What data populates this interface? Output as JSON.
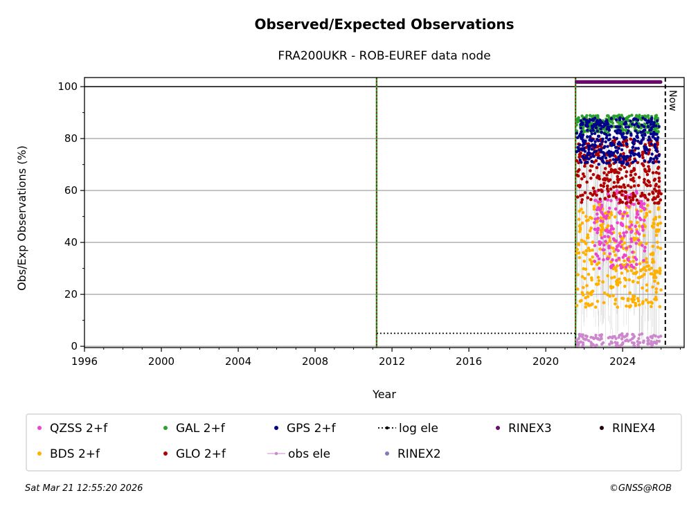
{
  "chart_data": {
    "type": "scatter",
    "title": "Observed/Expected Observations",
    "subtitle": "FRA200UKR - ROB-EUREF data node",
    "xlabel": "Year",
    "ylabel": "Obs/Exp Observations (%)",
    "xlim": [
      1996,
      2027.2
    ],
    "ylim": [
      -0.5,
      103.5
    ],
    "xticks": [
      1996,
      2000,
      2004,
      2008,
      2012,
      2016,
      2020,
      2024
    ],
    "yticks": [
      0,
      20,
      40,
      60,
      80,
      100
    ],
    "grid": "horizontal",
    "reference_line_y": 100,
    "now_marker": {
      "x": 2026.22,
      "label": "Now"
    },
    "event_lines": [
      {
        "x": 2011.2,
        "colors": [
          "#2ca02c",
          "#b00000"
        ]
      },
      {
        "x": 2021.55,
        "colors": [
          "#2ca02c",
          "#b00000"
        ]
      }
    ],
    "log_ele": {
      "x": [
        2011.2,
        2021.55
      ],
      "y": 5
    },
    "series": [
      {
        "name": "QZSS 2+f",
        "color": "#ee44cc",
        "x_range": [
          2022.5,
          2025.2
        ],
        "y_range": [
          30,
          60
        ]
      },
      {
        "name": "BDS 2+f",
        "color": "#ffb000",
        "x_range": [
          2021.6,
          2026.0
        ],
        "y_range": [
          15,
          55
        ]
      },
      {
        "name": "GAL 2+f",
        "color": "#2ca02c",
        "x_range": [
          2021.6,
          2025.9
        ],
        "y_range": [
          82,
          89
        ]
      },
      {
        "name": "GLO 2+f",
        "color": "#b00000",
        "x_range": [
          2021.6,
          2026.0
        ],
        "y_range": [
          55,
          80
        ]
      },
      {
        "name": "GPS 2+f",
        "color": "#00008b",
        "x_range": [
          2021.6,
          2025.9
        ],
        "y_range": [
          70,
          88
        ]
      },
      {
        "name": "obs ele",
        "color": "#cc88cc",
        "x_range": [
          2021.6,
          2026.0
        ],
        "y_range": [
          0,
          5
        ]
      },
      {
        "name": "log ele",
        "color": "#000000"
      },
      {
        "name": "RINEX2",
        "color": "#8877bb"
      },
      {
        "name": "RINEX3",
        "color": "#6a0a6a",
        "x_range": [
          2021.6,
          2026.0
        ],
        "y": 101.8
      },
      {
        "name": "RINEX4",
        "color": "#220011"
      }
    ],
    "legend": {
      "placement": "bottom",
      "rows": [
        [
          "QZSS 2+f",
          "GAL 2+f",
          "GPS 2+f",
          "log ele",
          "RINEX3",
          "RINEX4"
        ],
        [
          "BDS 2+f",
          "GLO 2+f",
          "obs ele",
          "RINEX2"
        ]
      ]
    }
  },
  "footer": {
    "timestamp": "Sat Mar 21 12:55:20 2026",
    "copyright": "©GNSS@ROB"
  }
}
